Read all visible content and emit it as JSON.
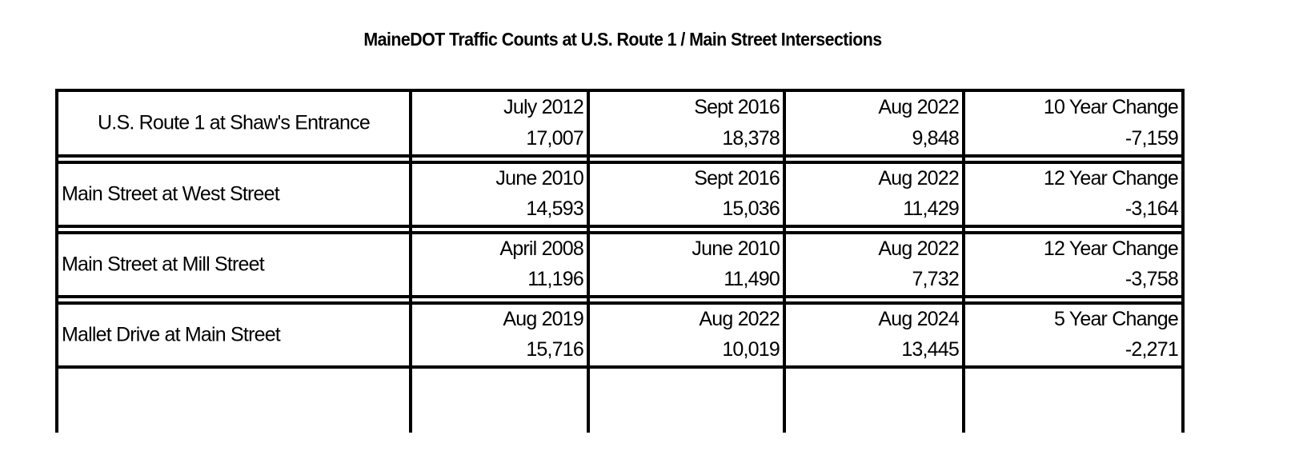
{
  "title": "MaineDOT Traffic Counts at U.S. Route 1 /  Main Street Intersections",
  "table": {
    "rows": [
      {
        "location": "U.S. Route 1 at Shaw's Entrance",
        "counts": [
          {
            "date": "July 2012",
            "value": "17,007"
          },
          {
            "date": "Sept 2016",
            "value": "18,378"
          },
          {
            "date": "Aug 2022",
            "value": "9,848"
          }
        ],
        "change": {
          "label": "10 Year Change",
          "value": "-7,159"
        }
      },
      {
        "location": "Main Street at West Street",
        "counts": [
          {
            "date": "June 2010",
            "value": "14,593"
          },
          {
            "date": "Sept 2016",
            "value": "15,036"
          },
          {
            "date": "Aug 2022",
            "value": "11,429"
          }
        ],
        "change": {
          "label": "12 Year Change",
          "value": "-3,164"
        }
      },
      {
        "location": "Main Street at Mill Street",
        "counts": [
          {
            "date": "April 2008",
            "value": "11,196"
          },
          {
            "date": "June 2010",
            "value": "11,490"
          },
          {
            "date": "Aug 2022",
            "value": "7,732"
          }
        ],
        "change": {
          "label": "12 Year Change",
          "value": "-3,758"
        }
      },
      {
        "location": "Mallet Drive at Main Street",
        "counts": [
          {
            "date": "Aug 2019",
            "value": "15,716"
          },
          {
            "date": "Aug 2022",
            "value": "10,019"
          },
          {
            "date": "Aug 2024",
            "value": "13,445"
          }
        ],
        "change": {
          "label": "5 Year Change",
          "value": "-2,271"
        }
      }
    ]
  }
}
